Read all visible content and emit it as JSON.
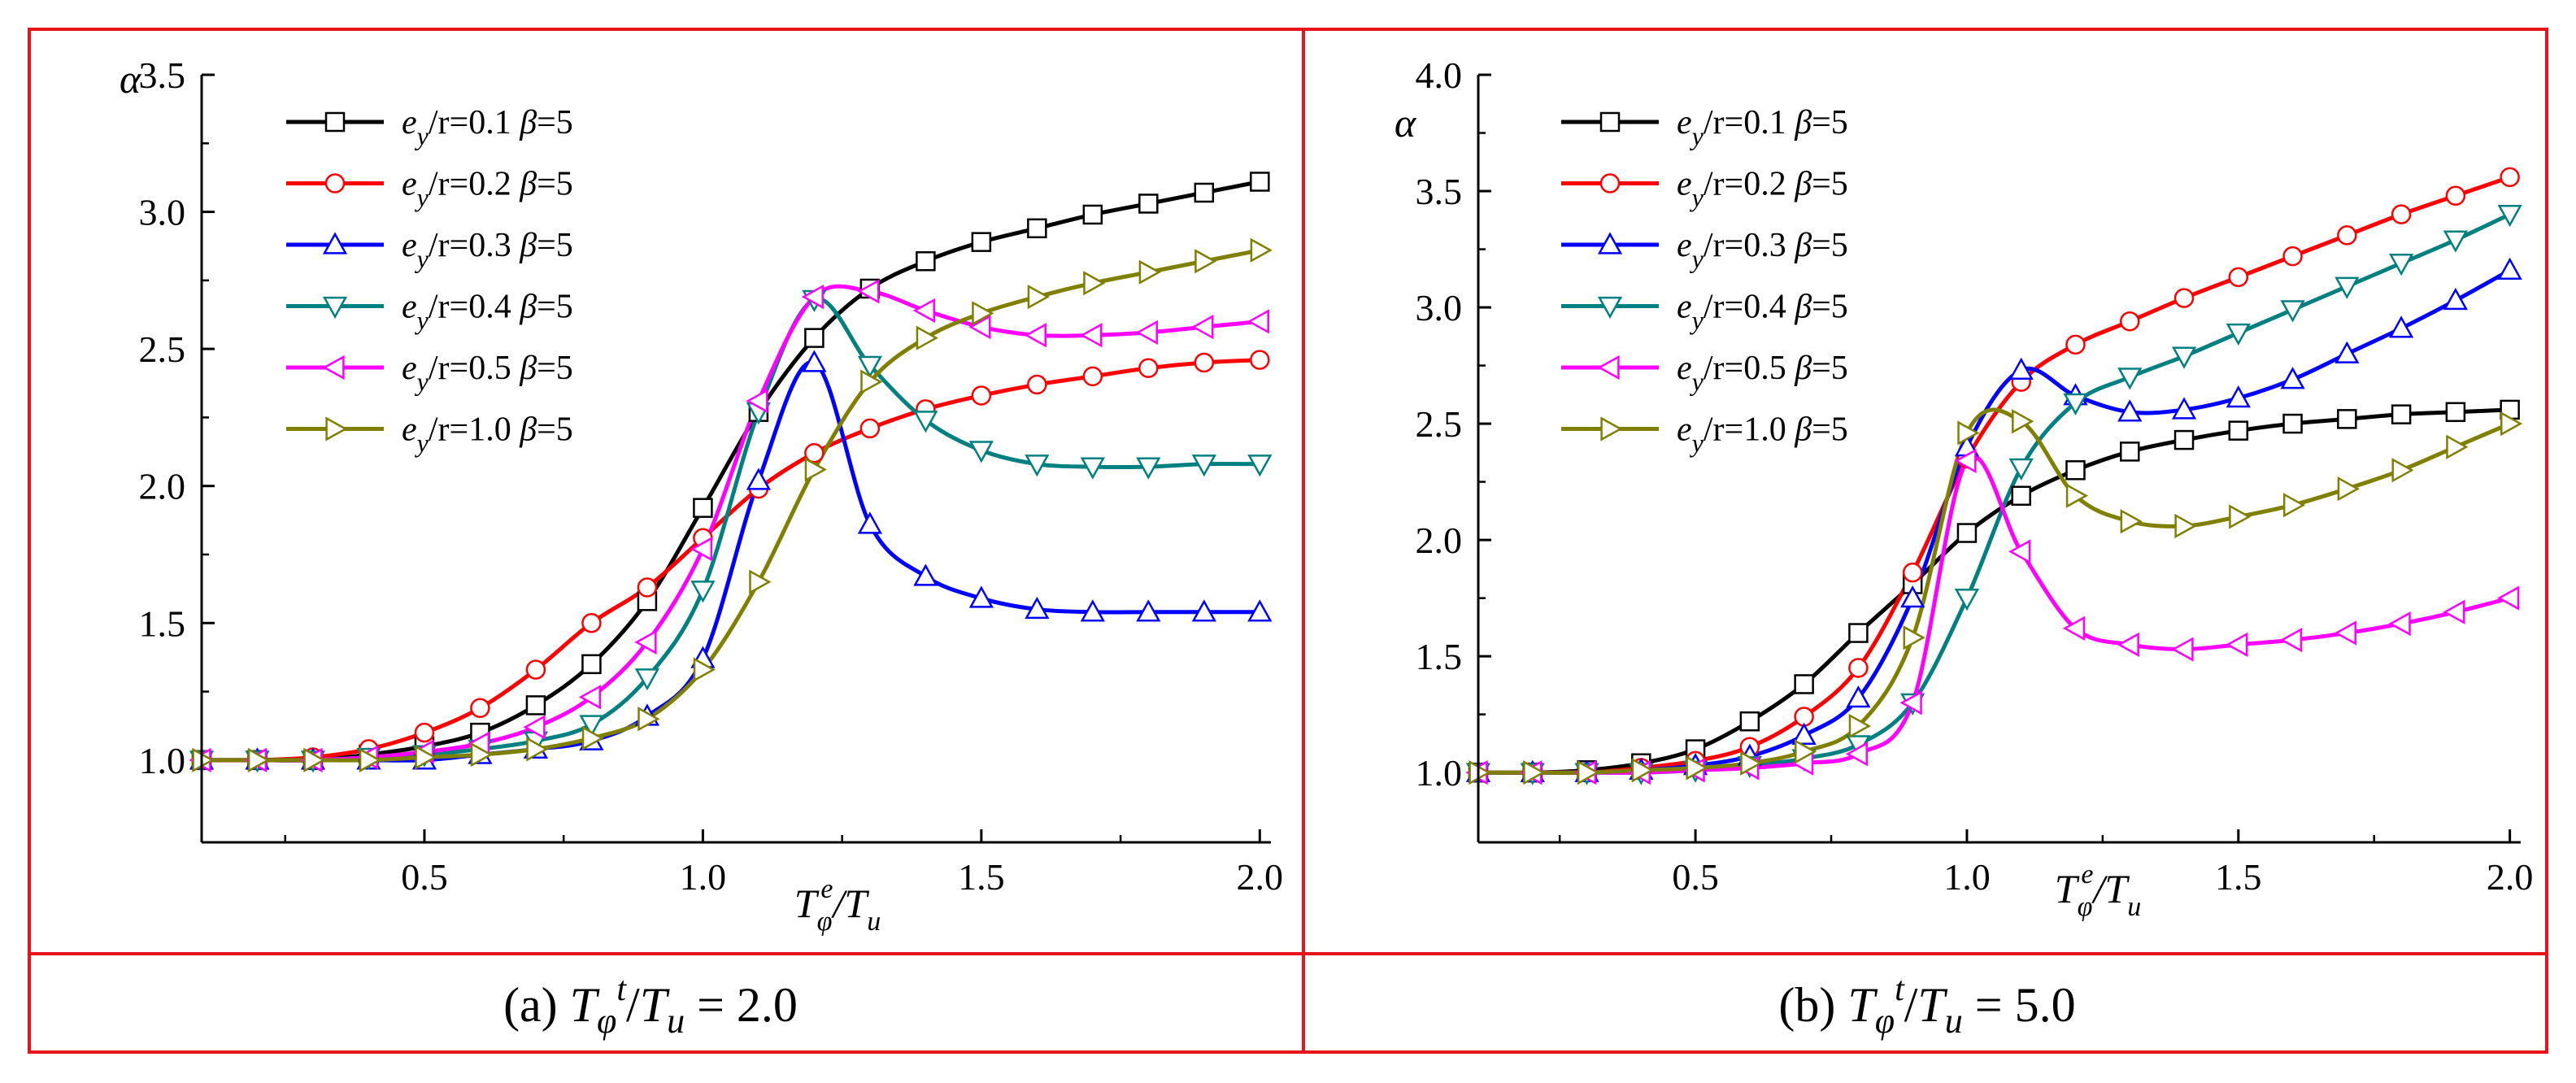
{
  "colors": {
    "frame": "#e8141b",
    "axis": "#000000",
    "series": [
      "#000000",
      "#ff0000",
      "#0000ff",
      "#008080",
      "#ff00ff",
      "#808000"
    ]
  },
  "chart_data": [
    {
      "type": "line",
      "panel": "a",
      "caption": {
        "prefix": "(a) ",
        "var": "T",
        "sub": "φ",
        "sup": "t",
        "mid": "/",
        "var2": "T",
        "sub2": "u",
        "suffix": " = 2.0"
      },
      "ylabel": "α",
      "xlabel": {
        "var": "T",
        "sub": "φ",
        "sup": "e",
        "mid": "/",
        "var2": "T",
        "sub2": "u"
      },
      "xlim": [
        0.1,
        2.02
      ],
      "ylim": [
        0.7,
        3.5
      ],
      "xticks": [
        0.5,
        1.0,
        1.5,
        2.0
      ],
      "xtick_labels": [
        "0.5",
        "1.0",
        "1.5",
        "2.0"
      ],
      "yticks": [
        1.0,
        1.5,
        2.0,
        2.5,
        3.0,
        3.5
      ],
      "ytick_labels": [
        "1.0",
        "1.5",
        "2.0",
        "2.5",
        "3.0",
        "3.5"
      ],
      "legend_position": "top-left",
      "series": [
        {
          "legend": [
            "e",
            "y",
            "/r=0.1  ",
            "β",
            "=5"
          ],
          "marker": "square",
          "x": [
            0.1,
            0.2,
            0.3,
            0.4,
            0.5,
            0.6,
            0.7,
            0.8,
            0.9,
            1.0,
            1.1,
            1.2,
            1.3,
            1.4,
            1.5,
            1.6,
            1.7,
            1.8,
            1.9,
            2.0
          ],
          "y": [
            1.0,
            1.0,
            1.0,
            1.02,
            1.05,
            1.1,
            1.2,
            1.35,
            1.58,
            1.92,
            2.27,
            2.54,
            2.72,
            2.82,
            2.89,
            2.94,
            2.99,
            3.03,
            3.07,
            3.11
          ]
        },
        {
          "legend": [
            "e",
            "y",
            "/r=0.2  ",
            "β",
            "=5"
          ],
          "marker": "circle",
          "x": [
            0.1,
            0.2,
            0.3,
            0.4,
            0.5,
            0.6,
            0.7,
            0.8,
            0.9,
            1.0,
            1.1,
            1.2,
            1.3,
            1.4,
            1.5,
            1.6,
            1.7,
            1.8,
            1.9,
            2.0
          ],
          "y": [
            1.0,
            1.0,
            1.01,
            1.04,
            1.1,
            1.19,
            1.33,
            1.5,
            1.63,
            1.81,
            1.99,
            2.12,
            2.21,
            2.28,
            2.33,
            2.37,
            2.4,
            2.43,
            2.45,
            2.46
          ]
        },
        {
          "legend": [
            "e",
            "y",
            "/r=0.3  ",
            "β",
            "=5"
          ],
          "marker": "triangle-up",
          "x": [
            0.1,
            0.2,
            0.3,
            0.4,
            0.5,
            0.6,
            0.7,
            0.8,
            0.9,
            1.0,
            1.1,
            1.2,
            1.3,
            1.4,
            1.5,
            1.6,
            1.7,
            1.8,
            1.9,
            2.0
          ],
          "y": [
            1.0,
            1.0,
            1.0,
            1.0,
            1.0,
            1.02,
            1.04,
            1.07,
            1.16,
            1.37,
            2.02,
            2.45,
            1.86,
            1.67,
            1.59,
            1.55,
            1.54,
            1.54,
            1.54,
            1.54
          ]
        },
        {
          "legend": [
            "e",
            "y",
            "/r=0.4  ",
            "β",
            "=5"
          ],
          "marker": "triangle-down",
          "x": [
            0.1,
            0.2,
            0.3,
            0.4,
            0.5,
            0.6,
            0.7,
            0.8,
            0.9,
            1.0,
            1.1,
            1.2,
            1.3,
            1.4,
            1.5,
            1.6,
            1.7,
            1.8,
            1.9,
            2.0
          ],
          "y": [
            1.0,
            1.0,
            1.0,
            1.01,
            1.02,
            1.04,
            1.07,
            1.13,
            1.3,
            1.62,
            2.27,
            2.68,
            2.44,
            2.24,
            2.13,
            2.08,
            2.07,
            2.07,
            2.08,
            2.08
          ]
        },
        {
          "legend": [
            "e",
            "y",
            "/r=0.5  ",
            "β",
            "=5"
          ],
          "marker": "triangle-left",
          "x": [
            0.1,
            0.2,
            0.3,
            0.4,
            0.5,
            0.6,
            0.7,
            0.8,
            0.9,
            1.0,
            1.1,
            1.2,
            1.3,
            1.4,
            1.5,
            1.6,
            1.7,
            1.8,
            1.9,
            2.0
          ],
          "y": [
            1.0,
            1.0,
            1.0,
            1.01,
            1.03,
            1.06,
            1.12,
            1.23,
            1.43,
            1.77,
            2.31,
            2.69,
            2.71,
            2.64,
            2.58,
            2.55,
            2.55,
            2.56,
            2.58,
            2.6
          ]
        },
        {
          "legend": [
            "e",
            "y",
            "/r=1.0  ",
            "β",
            "=5"
          ],
          "marker": "triangle-right",
          "x": [
            0.1,
            0.2,
            0.3,
            0.4,
            0.5,
            0.6,
            0.7,
            0.8,
            0.9,
            1.0,
            1.1,
            1.2,
            1.3,
            1.4,
            1.5,
            1.6,
            1.7,
            1.8,
            1.9,
            2.0
          ],
          "y": [
            1.0,
            1.0,
            1.0,
            1.0,
            1.01,
            1.02,
            1.04,
            1.08,
            1.15,
            1.33,
            1.65,
            2.06,
            2.38,
            2.54,
            2.63,
            2.69,
            2.74,
            2.78,
            2.82,
            2.86
          ]
        }
      ]
    },
    {
      "type": "line",
      "panel": "b",
      "caption": {
        "prefix": "(b) ",
        "var": "T",
        "sub": "φ",
        "sup": "t",
        "mid": "/",
        "var2": "T",
        "sub2": "u",
        "suffix": " = 5.0"
      },
      "ylabel": "α",
      "xlabel": {
        "var": "T",
        "sub": "φ",
        "sup": "e",
        "mid": "/",
        "var2": "T",
        "sub2": "u"
      },
      "xlim": [
        0.1,
        2.02
      ],
      "ylim": [
        0.7,
        4.0
      ],
      "xticks": [
        0.5,
        1.0,
        1.5,
        2.0
      ],
      "xtick_labels": [
        "0.5",
        "1.0",
        "1.5",
        "2.0"
      ],
      "yticks": [
        1.0,
        1.5,
        2.0,
        2.5,
        3.0,
        3.5,
        4.0
      ],
      "ytick_labels": [
        "1.0",
        "1.5",
        "2.0",
        "2.5",
        "3.0",
        "3.5",
        "4.0"
      ],
      "legend_position": "top-left",
      "series": [
        {
          "legend": [
            "e",
            "y",
            "/r=0.1  ",
            "β",
            "=5"
          ],
          "marker": "square",
          "x": [
            0.1,
            0.2,
            0.3,
            0.4,
            0.5,
            0.6,
            0.7,
            0.8,
            0.9,
            1.0,
            1.1,
            1.2,
            1.3,
            1.4,
            1.5,
            1.6,
            1.7,
            1.8,
            1.9,
            2.0
          ],
          "y": [
            1.0,
            1.0,
            1.01,
            1.04,
            1.1,
            1.22,
            1.38,
            1.6,
            1.81,
            2.03,
            2.19,
            2.3,
            2.38,
            2.43,
            2.47,
            2.5,
            2.52,
            2.54,
            2.55,
            2.56
          ]
        },
        {
          "legend": [
            "e",
            "y",
            "/r=0.2  ",
            "β",
            "=5"
          ],
          "marker": "circle",
          "x": [
            0.1,
            0.2,
            0.3,
            0.4,
            0.5,
            0.6,
            0.7,
            0.8,
            0.9,
            1.0,
            1.1,
            1.2,
            1.3,
            1.4,
            1.5,
            1.6,
            1.7,
            1.8,
            1.9,
            2.0
          ],
          "y": [
            1.0,
            1.0,
            1.0,
            1.02,
            1.05,
            1.11,
            1.24,
            1.45,
            1.86,
            2.35,
            2.68,
            2.84,
            2.94,
            3.04,
            3.13,
            3.22,
            3.31,
            3.4,
            3.48,
            3.56
          ]
        },
        {
          "legend": [
            "e",
            "y",
            "/r=0.3  ",
            "β",
            "=5"
          ],
          "marker": "triangle-up",
          "x": [
            0.1,
            0.2,
            0.3,
            0.4,
            0.5,
            0.6,
            0.7,
            0.8,
            0.9,
            1.0,
            1.1,
            1.2,
            1.3,
            1.4,
            1.5,
            1.6,
            1.7,
            1.8,
            1.9,
            2.0
          ],
          "y": [
            1.0,
            1.0,
            1.0,
            1.01,
            1.03,
            1.07,
            1.16,
            1.32,
            1.75,
            2.4,
            2.73,
            2.62,
            2.55,
            2.56,
            2.61,
            2.69,
            2.8,
            2.91,
            3.03,
            3.16
          ]
        },
        {
          "legend": [
            "e",
            "y",
            "/r=0.4  ",
            "β",
            "=5"
          ],
          "marker": "triangle-down",
          "x": [
            0.1,
            0.2,
            0.3,
            0.4,
            0.5,
            0.6,
            0.7,
            0.8,
            0.9,
            1.0,
            1.1,
            1.2,
            1.3,
            1.4,
            1.5,
            1.6,
            1.7,
            1.8,
            1.9,
            2.0
          ],
          "y": [
            1.0,
            1.0,
            1.0,
            1.0,
            1.01,
            1.03,
            1.06,
            1.12,
            1.3,
            1.75,
            2.31,
            2.59,
            2.7,
            2.79,
            2.89,
            2.99,
            3.09,
            3.19,
            3.29,
            3.4
          ]
        },
        {
          "legend": [
            "e",
            "y",
            "/r=0.5  ",
            "β",
            "=5"
          ],
          "marker": "triangle-left",
          "x": [
            0.1,
            0.2,
            0.3,
            0.4,
            0.5,
            0.6,
            0.7,
            0.8,
            0.9,
            1.0,
            1.1,
            1.2,
            1.3,
            1.4,
            1.5,
            1.6,
            1.7,
            1.8,
            1.9,
            2.0
          ],
          "y": [
            1.0,
            1.0,
            1.0,
            1.0,
            1.01,
            1.02,
            1.04,
            1.08,
            1.3,
            2.34,
            1.95,
            1.62,
            1.55,
            1.53,
            1.55,
            1.57,
            1.6,
            1.64,
            1.69,
            1.75
          ]
        },
        {
          "legend": [
            "e",
            "y",
            "/r=1.0  ",
            "β",
            "=5"
          ],
          "marker": "triangle-right",
          "x": [
            0.1,
            0.2,
            0.3,
            0.4,
            0.5,
            0.6,
            0.7,
            0.8,
            0.9,
            1.0,
            1.1,
            1.2,
            1.3,
            1.4,
            1.5,
            1.6,
            1.7,
            1.8,
            1.9,
            2.0
          ],
          "y": [
            1.0,
            1.0,
            1.0,
            1.01,
            1.02,
            1.04,
            1.09,
            1.2,
            1.58,
            2.46,
            2.51,
            2.19,
            2.08,
            2.06,
            2.1,
            2.15,
            2.22,
            2.3,
            2.4,
            2.5
          ]
        }
      ]
    }
  ]
}
